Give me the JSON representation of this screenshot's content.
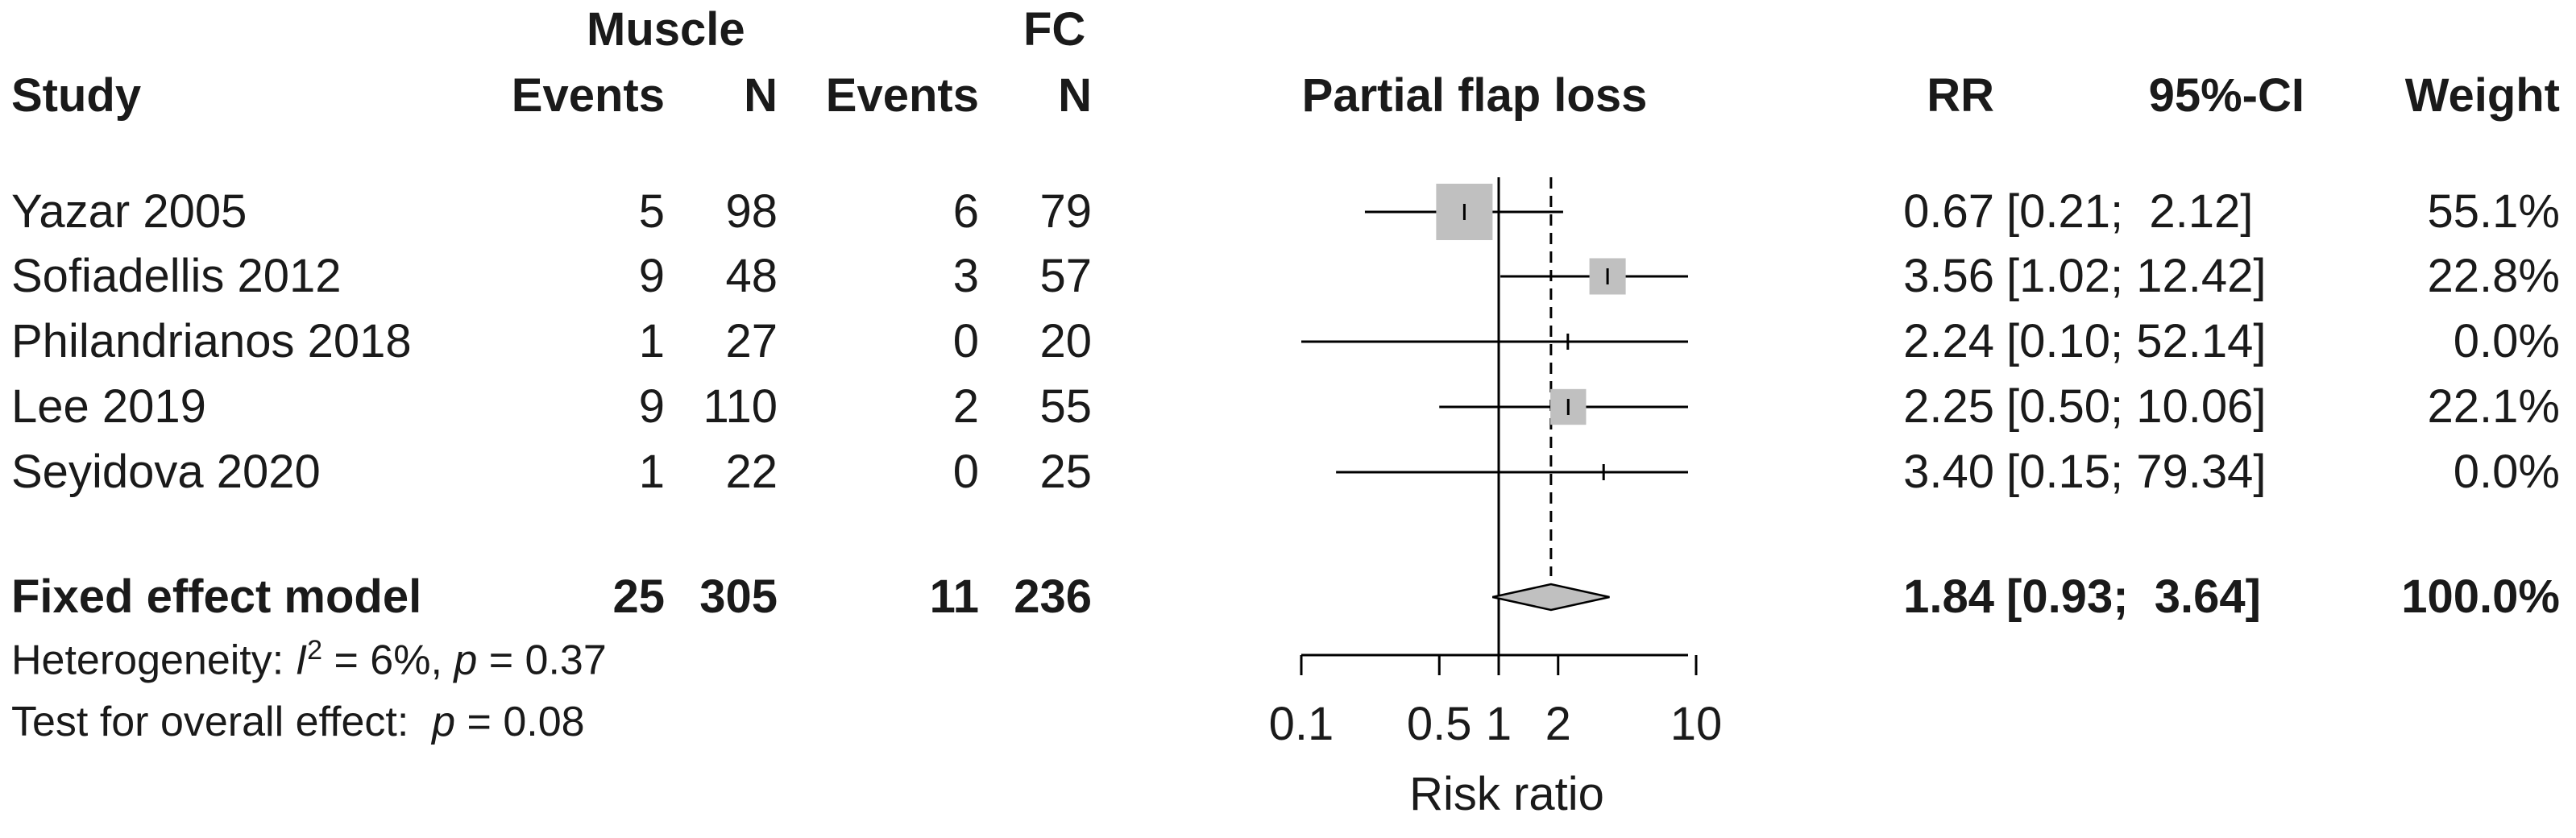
{
  "header": {
    "group1": "Muscle",
    "group2": "FC",
    "study": "Study",
    "events": "Events",
    "n": "N",
    "plot_title": "Partial flap loss",
    "rr": "RR",
    "ci": "95%-CI",
    "weight": "Weight"
  },
  "studies": [
    {
      "name": "Yazar 2005",
      "e1": "5",
      "n1": "98",
      "e2": "6",
      "n2": "79",
      "rr": "0.67",
      "ci": "[0.21;  2.12]",
      "weight": "55.1%"
    },
    {
      "name": "Sofiadellis 2012",
      "e1": "9",
      "n1": "48",
      "e2": "3",
      "n2": "57",
      "rr": "3.56",
      "ci": "[1.02; 12.42]",
      "weight": "22.8%"
    },
    {
      "name": "Philandrianos 2018",
      "e1": "1",
      "n1": "27",
      "e2": "0",
      "n2": "20",
      "rr": "2.24",
      "ci": "[0.10; 52.14]",
      "weight": "0.0%"
    },
    {
      "name": "Lee 2019",
      "e1": "9",
      "n1": "110",
      "e2": "2",
      "n2": "55",
      "rr": "2.25",
      "ci": "[0.50; 10.06]",
      "weight": "22.1%"
    },
    {
      "name": "Seyidova 2020",
      "e1": "1",
      "n1": "22",
      "e2": "0",
      "n2": "25",
      "rr": "3.40",
      "ci": "[0.15; 79.34]",
      "weight": "0.0%"
    }
  ],
  "summary": {
    "name": "Fixed effect model",
    "e1": "25",
    "n1": "305",
    "e2": "11",
    "n2": "236",
    "rr": "1.84",
    "ci": "[0.93;  3.64]",
    "weight": "100.0%"
  },
  "footer": {
    "het_label": "Heterogeneity: ",
    "het_i": "I",
    "het_sup": "2",
    "het_rest": " = 6%, ",
    "het_p": "p",
    "het_pval": " = 0.37",
    "test_label": "Test for overall effect:  ",
    "test_p": "p",
    "test_pval": " = 0.08"
  },
  "chart_data": {
    "type": "forest",
    "title": "Partial flap loss",
    "xlabel": "Risk ratio",
    "scale": "log",
    "xlim": [
      0.1,
      10
    ],
    "ticks": [
      0.1,
      0.5,
      1,
      2,
      10
    ],
    "tick_labels": [
      "0.1",
      "0.5",
      "1",
      "2",
      "10"
    ],
    "reference_line": 1,
    "summary_line": 1.84,
    "studies": [
      {
        "label": "Yazar 2005",
        "rr": 0.67,
        "lower": 0.21,
        "upper": 2.12,
        "weight": 55.1
      },
      {
        "label": "Sofiadellis 2012",
        "rr": 3.56,
        "lower": 1.02,
        "upper": 12.42,
        "weight": 22.8
      },
      {
        "label": "Philandrianos 2018",
        "rr": 2.24,
        "lower": 0.1,
        "upper": 52.14,
        "weight": 0.0
      },
      {
        "label": "Lee 2019",
        "rr": 2.25,
        "lower": 0.5,
        "upper": 10.06,
        "weight": 22.1
      },
      {
        "label": "Seyidova 2020",
        "rr": 3.4,
        "lower": 0.15,
        "upper": 79.34,
        "weight": 0.0
      }
    ],
    "pooled": {
      "label": "Fixed effect model",
      "rr": 1.84,
      "lower": 0.93,
      "upper": 3.64,
      "weight": 100.0
    },
    "colors": {
      "box": "#c0c0c0",
      "line": "#000000",
      "diamond": "#c0c0c0"
    }
  }
}
